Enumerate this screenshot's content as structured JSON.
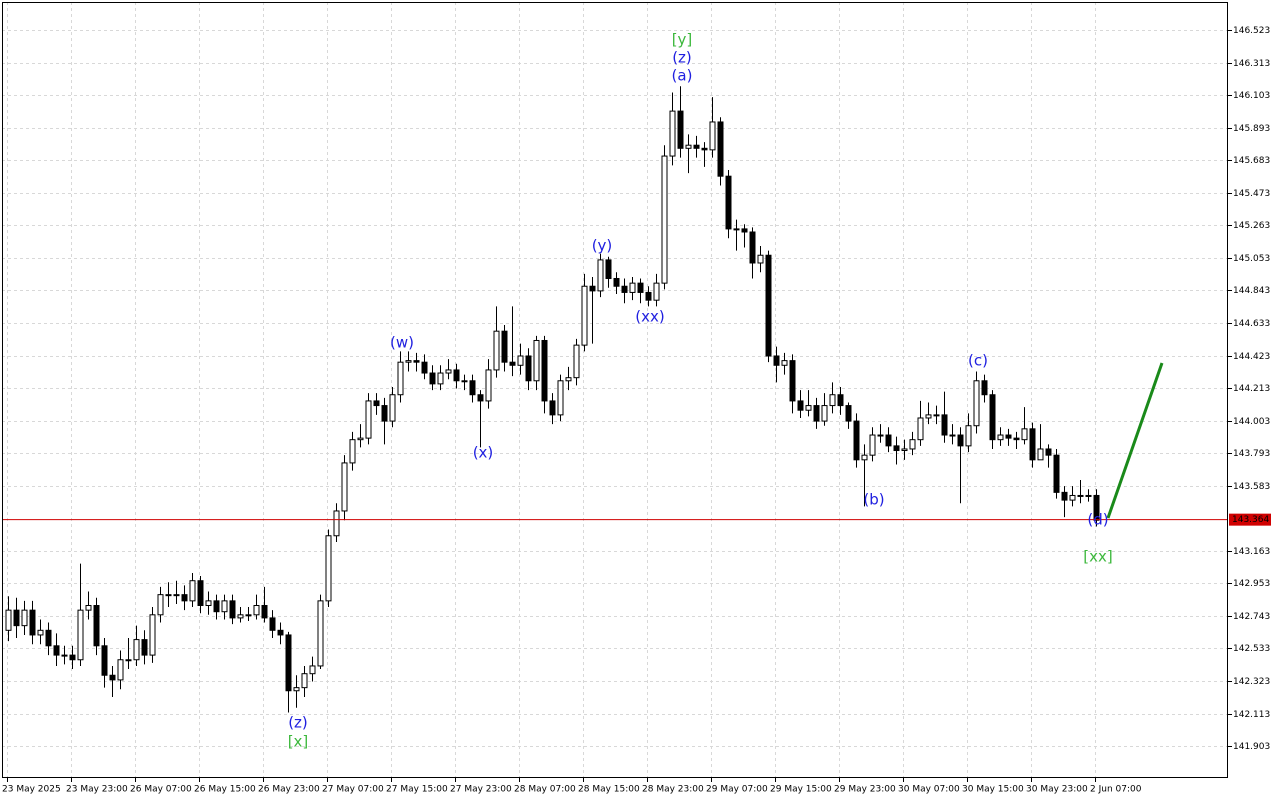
{
  "chart_data": {
    "type": "candlestick",
    "categories": [
      "23 May 2025",
      null,
      null,
      null,
      null,
      null,
      null,
      null,
      "23 May 23:00",
      null,
      null,
      null,
      null,
      null,
      null,
      null,
      "26 May 07:00",
      null,
      null,
      null,
      null,
      null,
      null,
      null,
      "26 May 15:00",
      null,
      null,
      null,
      null,
      null,
      null,
      null,
      "26 May 23:00",
      null,
      null,
      null,
      null,
      null,
      null,
      null,
      "27 May 07:00",
      null,
      null,
      null,
      null,
      null,
      null,
      null,
      "27 May 15:00",
      null,
      null,
      null,
      null,
      null,
      null,
      null,
      "27 May 23:00",
      null,
      null,
      null,
      null,
      null,
      null,
      null,
      "28 May 07:00",
      null,
      null,
      null,
      null,
      null,
      null,
      null,
      "28 May 15:00",
      null,
      null,
      null,
      null,
      null,
      null,
      null,
      "28 May 23:00",
      null,
      null,
      null,
      null,
      null,
      null,
      null,
      "29 May 07:00",
      null,
      null,
      null,
      null,
      null,
      null,
      null,
      "29 May 15:00",
      null,
      null,
      null,
      null,
      null,
      null,
      null,
      "29 May 23:00",
      null,
      null,
      null,
      null,
      null,
      null,
      null,
      "30 May 07:00",
      null,
      null,
      null,
      null,
      null,
      null,
      null,
      "30 May 15:00",
      null,
      null,
      null,
      null,
      null,
      null,
      null,
      "30 May 23:00",
      null,
      null,
      null,
      null,
      null,
      null,
      null,
      "2 Jun 07:00"
    ],
    "open": [
      142.65,
      142.78,
      142.68,
      142.78,
      142.62,
      142.65,
      142.55,
      142.49,
      142.49,
      142.46,
      142.78,
      142.81,
      142.55,
      142.36,
      142.33,
      142.46,
      142.46,
      142.59,
      142.49,
      142.75,
      142.88,
      142.88,
      142.88,
      142.84,
      142.97,
      142.81,
      142.84,
      142.77,
      142.84,
      142.73,
      142.75,
      142.75,
      142.81,
      142.73,
      142.65,
      142.62,
      142.26,
      142.28,
      142.37,
      142.42,
      142.84,
      143.26,
      143.42,
      143.73,
      143.88,
      143.89,
      144.13,
      144.1,
      144.0,
      144.17,
      144.38,
      144.39,
      144.38,
      144.31,
      144.24,
      144.31,
      144.33,
      144.26,
      144.26,
      144.17,
      144.13,
      144.33,
      144.58,
      144.38,
      144.36,
      144.42,
      144.26,
      144.52,
      144.13,
      144.04,
      144.26,
      144.28,
      144.49,
      144.87,
      144.84,
      145.04,
      144.92,
      144.87,
      144.83,
      144.89,
      144.83,
      144.78,
      144.89,
      145.71,
      146.0,
      145.76,
      145.78,
      145.76,
      145.75,
      145.93,
      145.58,
      145.24,
      145.24,
      145.22,
      145.02,
      145.07,
      144.42,
      144.36,
      144.39,
      144.13,
      144.07,
      144.1,
      144.0,
      144.1,
      144.17,
      144.1,
      144.0,
      143.75,
      143.78,
      143.91,
      143.91,
      143.84,
      143.81,
      143.82,
      143.88,
      144.02,
      144.04,
      144.04,
      143.91,
      143.91,
      143.84,
      143.97,
      144.26,
      144.17,
      143.88,
      143.91,
      143.89,
      143.88,
      143.95,
      143.75,
      143.82,
      143.78,
      143.54,
      143.49,
      143.52,
      143.52,
      143.52
    ],
    "high": [
      142.87,
      142.86,
      142.84,
      142.84,
      142.72,
      142.7,
      142.63,
      142.55,
      142.55,
      143.08,
      142.9,
      142.86,
      142.6,
      142.42,
      142.52,
      142.6,
      142.68,
      142.65,
      142.8,
      142.93,
      142.96,
      142.97,
      142.94,
      143.02,
      143.0,
      142.9,
      142.88,
      142.88,
      142.88,
      142.8,
      142.8,
      142.88,
      142.93,
      142.78,
      142.7,
      142.64,
      142.36,
      142.42,
      142.48,
      142.88,
      143.3,
      143.47,
      143.78,
      143.93,
      143.98,
      144.18,
      144.18,
      144.15,
      144.22,
      144.45,
      144.45,
      144.44,
      144.43,
      144.36,
      144.36,
      144.4,
      144.37,
      144.3,
      144.3,
      144.2,
      144.4,
      144.74,
      144.62,
      144.74,
      144.5,
      144.47,
      144.55,
      144.55,
      144.18,
      144.3,
      144.35,
      144.53,
      144.95,
      144.93,
      145.08,
      145.06,
      144.96,
      144.92,
      144.93,
      144.92,
      144.87,
      144.95,
      145.78,
      146.12,
      146.16,
      145.85,
      145.84,
      145.8,
      146.09,
      145.96,
      145.62,
      145.3,
      145.27,
      145.25,
      145.13,
      145.1,
      144.48,
      144.44,
      144.43,
      144.2,
      144.2,
      144.15,
      144.18,
      144.25,
      144.22,
      144.12,
      144.05,
      143.85,
      143.96,
      143.98,
      143.96,
      143.9,
      143.88,
      143.93,
      144.13,
      144.12,
      144.1,
      144.19,
      143.98,
      143.96,
      144.05,
      144.32,
      144.3,
      144.2,
      143.96,
      143.95,
      143.93,
      144.09,
      143.99,
      143.98,
      143.85,
      143.82,
      143.58,
      143.58,
      143.62,
      143.56,
      143.56
    ],
    "low": [
      142.58,
      142.6,
      142.62,
      142.56,
      142.56,
      142.49,
      142.42,
      142.43,
      142.4,
      142.42,
      142.72,
      142.49,
      142.28,
      142.22,
      142.27,
      142.4,
      142.42,
      142.43,
      142.44,
      142.7,
      142.8,
      142.82,
      142.78,
      142.8,
      142.76,
      142.75,
      142.72,
      142.72,
      142.69,
      142.7,
      142.71,
      142.72,
      142.7,
      142.6,
      142.56,
      142.12,
      142.15,
      142.22,
      142.32,
      142.4,
      142.8,
      143.22,
      143.36,
      143.68,
      143.83,
      143.85,
      144.04,
      143.85,
      143.96,
      144.12,
      144.32,
      144.32,
      144.27,
      144.2,
      144.2,
      144.27,
      144.21,
      144.2,
      144.12,
      143.83,
      144.08,
      144.28,
      144.32,
      144.29,
      144.3,
      144.2,
      144.2,
      144.05,
      143.98,
      144.0,
      144.2,
      144.23,
      144.45,
      144.5,
      144.8,
      144.86,
      144.82,
      144.76,
      144.78,
      144.76,
      144.74,
      144.74,
      144.85,
      145.65,
      145.7,
      145.6,
      145.7,
      145.64,
      145.7,
      145.52,
      145.18,
      145.1,
      145.12,
      144.92,
      144.96,
      144.38,
      144.25,
      144.3,
      144.05,
      144.02,
      144.03,
      143.95,
      143.97,
      144.05,
      144.04,
      143.95,
      143.7,
      143.45,
      143.74,
      143.86,
      143.8,
      143.72,
      143.75,
      143.78,
      143.84,
      143.98,
      143.98,
      143.86,
      143.85,
      143.47,
      143.8,
      143.92,
      144.12,
      143.82,
      143.84,
      143.84,
      143.82,
      143.85,
      143.7,
      143.75,
      143.7,
      143.5,
      143.38,
      143.45,
      143.47,
      143.48,
      143.32
    ],
    "close": [
      142.78,
      142.68,
      142.78,
      142.62,
      142.65,
      142.55,
      142.49,
      142.49,
      142.46,
      142.78,
      142.81,
      142.55,
      142.36,
      142.33,
      142.46,
      142.46,
      142.59,
      142.49,
      142.75,
      142.88,
      142.88,
      142.88,
      142.84,
      142.97,
      142.81,
      142.84,
      142.77,
      142.84,
      142.73,
      142.75,
      142.75,
      142.81,
      142.73,
      142.65,
      142.62,
      142.26,
      142.28,
      142.37,
      142.42,
      142.84,
      143.26,
      143.42,
      143.73,
      143.88,
      143.89,
      144.13,
      144.1,
      144.0,
      144.17,
      144.38,
      144.39,
      144.38,
      144.31,
      144.24,
      144.31,
      144.33,
      144.26,
      144.26,
      144.17,
      144.13,
      144.33,
      144.58,
      144.38,
      144.36,
      144.42,
      144.26,
      144.52,
      144.13,
      144.04,
      144.26,
      144.28,
      144.49,
      144.87,
      144.84,
      145.04,
      144.92,
      144.87,
      144.83,
      144.89,
      144.83,
      144.78,
      144.89,
      145.71,
      146.0,
      145.76,
      145.78,
      145.76,
      145.75,
      145.93,
      145.58,
      145.24,
      145.24,
      145.22,
      145.02,
      145.07,
      144.42,
      144.36,
      144.39,
      144.13,
      144.07,
      144.1,
      144.0,
      144.1,
      144.17,
      144.1,
      144.0,
      143.75,
      143.78,
      143.91,
      143.91,
      143.84,
      143.81,
      143.82,
      143.88,
      144.02,
      144.04,
      144.04,
      143.91,
      143.91,
      143.84,
      143.97,
      144.26,
      144.17,
      143.88,
      143.91,
      143.89,
      143.88,
      143.95,
      143.75,
      143.82,
      143.78,
      143.54,
      143.49,
      143.52,
      143.52,
      143.52,
      143.36
    ],
    "ylim": [
      141.697,
      146.704
    ],
    "yticks": [
      146.523,
      146.313,
      146.103,
      145.893,
      145.683,
      145.473,
      145.263,
      145.053,
      144.843,
      144.633,
      144.423,
      144.213,
      144.003,
      143.793,
      143.583,
      143.163,
      142.953,
      142.743,
      142.533,
      142.323,
      142.113,
      141.903
    ],
    "current_price": 143.364,
    "current_price_color": "#d00000",
    "grid": true,
    "up_color": "#ffffff",
    "down_color": "#000000",
    "annotations": [
      {
        "text": "[y]",
        "color": "#3cb83c"
      },
      {
        "text": "(z)",
        "color": "#2020e0"
      },
      {
        "text": "(a)",
        "color": "#2020e0"
      },
      {
        "text": "(w)",
        "color": "#2020e0"
      },
      {
        "text": "(x)",
        "color": "#2020e0"
      },
      {
        "text": "(y)",
        "color": "#2020e0"
      },
      {
        "text": "(xx)",
        "color": "#2020e0"
      },
      {
        "text": "(c)",
        "color": "#2020e0"
      },
      {
        "text": "(b)",
        "color": "#2020e0"
      },
      {
        "text": "(d)",
        "color": "#2020e0"
      },
      {
        "text": "[xx]",
        "color": "#3cb83c"
      },
      {
        "text": "(z)",
        "color": "#2020e0"
      },
      {
        "text": "[x]",
        "color": "#3cb83c"
      }
    ]
  }
}
